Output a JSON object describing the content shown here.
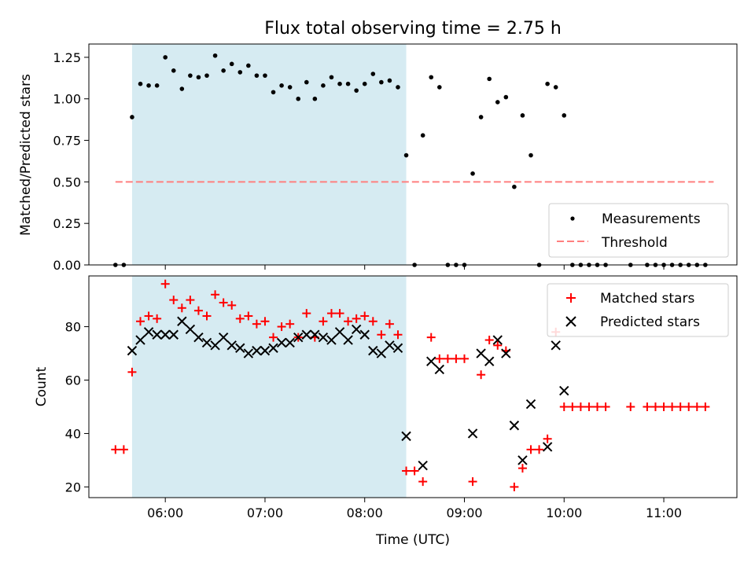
{
  "chart_data": [
    {
      "type": "scatter",
      "title": "Flux total observing time = 2.75 h",
      "xlabel": "",
      "ylabel": "Matched/Predicted stars",
      "xlim": [
        "05:14",
        "11:44"
      ],
      "ylim": [
        0,
        1.33
      ],
      "yticks": [
        "0.00",
        "0.25",
        "0.50",
        "0.75",
        "1.00",
        "1.25"
      ],
      "shaded_span": [
        "05:40",
        "08:25"
      ],
      "legend": {
        "position": "lower right",
        "entries": [
          "Measurements",
          "Threshold"
        ]
      },
      "threshold": {
        "value": 0.5,
        "x_range": [
          "05:30",
          "11:30"
        ],
        "color": "#ff7f7f"
      },
      "series": [
        {
          "name": "Measurements",
          "marker": "dot",
          "color": "#000000",
          "x": [
            "05:30",
            "05:35",
            "05:40",
            "05:45",
            "05:50",
            "05:55",
            "06:00",
            "06:05",
            "06:10",
            "06:15",
            "06:20",
            "06:25",
            "06:30",
            "06:35",
            "06:40",
            "06:45",
            "06:50",
            "06:55",
            "07:00",
            "07:05",
            "07:10",
            "07:15",
            "07:20",
            "07:25",
            "07:30",
            "07:35",
            "07:40",
            "07:45",
            "07:50",
            "07:55",
            "08:00",
            "08:05",
            "08:10",
            "08:15",
            "08:20",
            "08:25",
            "08:30",
            "08:35",
            "08:40",
            "08:45",
            "08:50",
            "08:55",
            "09:00",
            "09:05",
            "09:10",
            "09:15",
            "09:20",
            "09:25",
            "09:30",
            "09:35",
            "09:40",
            "09:45",
            "09:50",
            "09:55",
            "10:00",
            "10:05",
            "10:10",
            "10:15",
            "10:20",
            "10:25",
            "10:40",
            "10:50",
            "10:55",
            "11:00",
            "11:05",
            "11:10",
            "11:15",
            "11:20",
            "11:25"
          ],
          "y": [
            0,
            0,
            0.89,
            1.09,
            1.08,
            1.08,
            1.25,
            1.17,
            1.06,
            1.14,
            1.13,
            1.14,
            1.26,
            1.17,
            1.21,
            1.16,
            1.2,
            1.14,
            1.14,
            1.04,
            1.08,
            1.07,
            1.0,
            1.1,
            1.0,
            1.08,
            1.13,
            1.09,
            1.09,
            1.05,
            1.09,
            1.15,
            1.1,
            1.11,
            1.07,
            0.66,
            0,
            0.78,
            1.13,
            1.07,
            0,
            0,
            0,
            0.55,
            0.89,
            1.12,
            0.98,
            1.01,
            0.47,
            0.9,
            0.66,
            0,
            1.09,
            1.07,
            0.9,
            0,
            0,
            0,
            0,
            0,
            0,
            0,
            0,
            0,
            0,
            0,
            0,
            0,
            0
          ]
        }
      ]
    },
    {
      "type": "scatter",
      "title": "",
      "xlabel": "Time (UTC)",
      "ylabel": "Count",
      "xlim": [
        "05:14",
        "11:44"
      ],
      "ylim": [
        16,
        99
      ],
      "yticks": [
        "20",
        "40",
        "60",
        "80"
      ],
      "xticks": [
        "06:00",
        "07:00",
        "08:00",
        "09:00",
        "10:00",
        "11:00"
      ],
      "shaded_span": [
        "05:40",
        "08:25"
      ],
      "legend": {
        "position": "top right",
        "entries": [
          "Matched stars",
          "Predicted stars"
        ]
      },
      "series": [
        {
          "name": "Matched stars",
          "marker": "plus",
          "color": "#ff0000",
          "x": [
            "05:30",
            "05:35",
            "05:40",
            "05:45",
            "05:50",
            "05:55",
            "06:00",
            "06:05",
            "06:10",
            "06:15",
            "06:20",
            "06:25",
            "06:30",
            "06:35",
            "06:40",
            "06:45",
            "06:50",
            "06:55",
            "07:00",
            "07:05",
            "07:10",
            "07:15",
            "07:20",
            "07:25",
            "07:30",
            "07:35",
            "07:40",
            "07:45",
            "07:50",
            "07:55",
            "08:00",
            "08:05",
            "08:10",
            "08:15",
            "08:20",
            "08:25",
            "08:30",
            "08:35",
            "08:40",
            "08:45",
            "08:50",
            "08:55",
            "09:00",
            "09:05",
            "09:10",
            "09:15",
            "09:20",
            "09:25",
            "09:30",
            "09:35",
            "09:40",
            "09:45",
            "09:50",
            "09:55",
            "10:00",
            "10:05",
            "10:10",
            "10:15",
            "10:20",
            "10:25",
            "10:40",
            "10:50",
            "10:55",
            "11:00",
            "11:05",
            "11:10",
            "11:15",
            "11:20",
            "11:25"
          ],
          "y": [
            34,
            34,
            63,
            82,
            84,
            83,
            96,
            90,
            87,
            90,
            86,
            84,
            92,
            89,
            88,
            83,
            84,
            81,
            82,
            76,
            80,
            81,
            76,
            85,
            76,
            82,
            85,
            85,
            82,
            83,
            84,
            82,
            77,
            81,
            77,
            26,
            26,
            22,
            76,
            68,
            68,
            68,
            68,
            22,
            62,
            75,
            73,
            71,
            20,
            27,
            34,
            34,
            38,
            78,
            50,
            50,
            50,
            50,
            50,
            50,
            50,
            50,
            50,
            50,
            50,
            50,
            50,
            50,
            50
          ]
        },
        {
          "name": "Predicted stars",
          "marker": "x",
          "color": "#000000",
          "x": [
            "05:40",
            "05:45",
            "05:50",
            "05:55",
            "06:00",
            "06:05",
            "06:10",
            "06:15",
            "06:20",
            "06:25",
            "06:30",
            "06:35",
            "06:40",
            "06:45",
            "06:50",
            "06:55",
            "07:00",
            "07:05",
            "07:10",
            "07:15",
            "07:20",
            "07:25",
            "07:30",
            "07:35",
            "07:40",
            "07:45",
            "07:50",
            "07:55",
            "08:00",
            "08:05",
            "08:10",
            "08:15",
            "08:20",
            "08:25",
            "08:35",
            "08:40",
            "08:45",
            "09:05",
            "09:10",
            "09:15",
            "09:20",
            "09:25",
            "09:30",
            "09:35",
            "09:40",
            "09:50",
            "09:55",
            "10:00"
          ],
          "y": [
            71,
            75,
            78,
            77,
            77,
            77,
            82,
            79,
            76,
            74,
            73,
            76,
            73,
            72,
            70,
            71,
            71,
            72,
            74,
            74,
            76,
            77,
            77,
            76,
            75,
            78,
            75,
            79,
            77,
            71,
            70,
            73,
            72,
            39,
            28,
            67,
            64,
            40,
            70,
            67,
            75,
            70,
            43,
            30,
            51,
            35,
            73,
            56
          ]
        }
      ]
    }
  ]
}
